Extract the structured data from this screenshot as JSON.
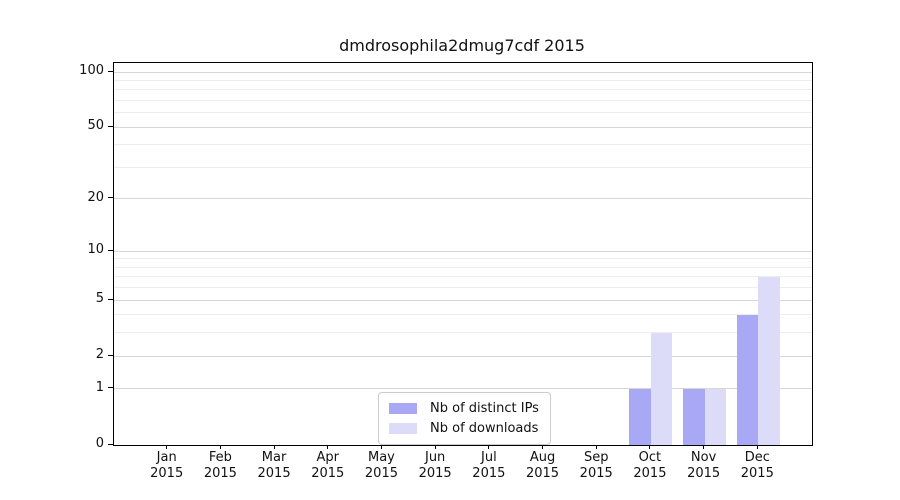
{
  "chart_data": {
    "type": "bar",
    "title": "dmdrosophila2dmug7cdf 2015",
    "year": "2015",
    "categories": [
      "Jan",
      "Feb",
      "Mar",
      "Apr",
      "May",
      "Jun",
      "Jul",
      "Aug",
      "Sep",
      "Oct",
      "Nov",
      "Dec"
    ],
    "series": [
      {
        "name": "Nb of distinct IPs",
        "color": "#a8a8f5",
        "values": [
          0,
          0,
          0,
          0,
          0,
          0,
          0,
          0,
          0,
          1,
          1,
          4
        ]
      },
      {
        "name": "Nb of downloads",
        "color": "#dcdcf9",
        "values": [
          0,
          0,
          0,
          0,
          0,
          0,
          0,
          0,
          0,
          3,
          1,
          7
        ]
      }
    ],
    "xlabel": "",
    "ylabel": "",
    "scale": "log10(value+1)",
    "ylim": [
      0,
      112
    ],
    "y_major_ticks": [
      0,
      1,
      2,
      5,
      10,
      20,
      50,
      100
    ],
    "y_minor_gridlines": [
      3,
      4,
      6,
      7,
      8,
      9,
      30,
      40,
      60,
      70,
      80,
      90
    ],
    "grid": true,
    "legend_position": "bottom-center",
    "colors": {
      "axis": "#000000",
      "grid_major": "#d7d7d7",
      "grid_minor": "#ededed",
      "text": "#111111",
      "background": "#ffffff"
    }
  }
}
